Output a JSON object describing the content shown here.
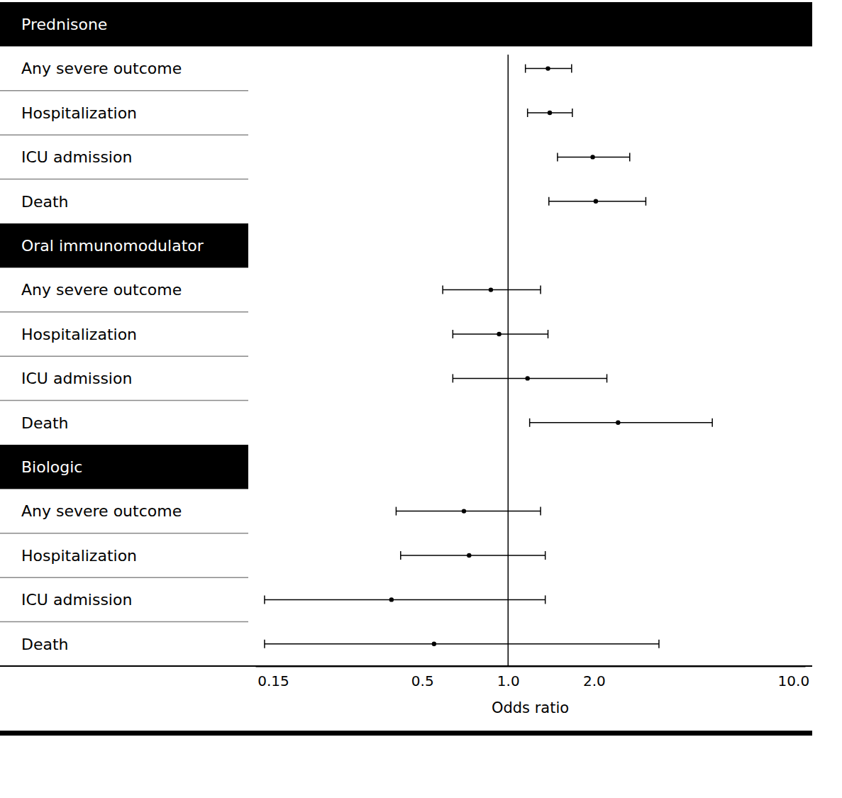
{
  "chart_data": {
    "type": "forest",
    "log": "x",
    "xlabel": "Odds ratio",
    "xlim": [
      0.13,
      11
    ],
    "xticks": [
      {
        "value": 0.15,
        "label": "0.15"
      },
      {
        "value": 0.5,
        "label": "0.5"
      },
      {
        "value": 1,
        "label": "1.0"
      },
      {
        "value": 2,
        "label": "2.0"
      },
      {
        "value": 10,
        "label": "10.0"
      }
    ],
    "reference_line": 1,
    "color": "#000000",
    "series": [
      {
        "name": "Prednisone",
        "categories": [
          "Any severe outcome",
          "Hospitalization",
          "ICU admission",
          "Death"
        ],
        "values": [
          1.38,
          1.4,
          1.98,
          2.03
        ],
        "ci_low": [
          1.15,
          1.17,
          1.49,
          1.39
        ],
        "ci_high": [
          1.67,
          1.68,
          2.67,
          3.04
        ]
      },
      {
        "name": "Oral immunomodulator",
        "categories": [
          "Any severe outcome",
          "Hospitalization",
          "ICU admission",
          "Death"
        ],
        "values": [
          0.87,
          0.93,
          1.17,
          2.43
        ],
        "ci_low": [
          0.59,
          0.64,
          0.64,
          1.19
        ],
        "ci_high": [
          1.3,
          1.38,
          2.22,
          5.2
        ]
      },
      {
        "name": "Biologic",
        "categories": [
          "Any severe outcome",
          "Hospitalization",
          "ICU admission",
          "Death"
        ],
        "values": [
          0.7,
          0.73,
          0.39,
          0.55
        ],
        "ci_low": [
          0.405,
          0.42,
          0.14,
          0.14
        ],
        "ci_high": [
          1.3,
          1.35,
          1.35,
          3.38
        ]
      }
    ]
  }
}
